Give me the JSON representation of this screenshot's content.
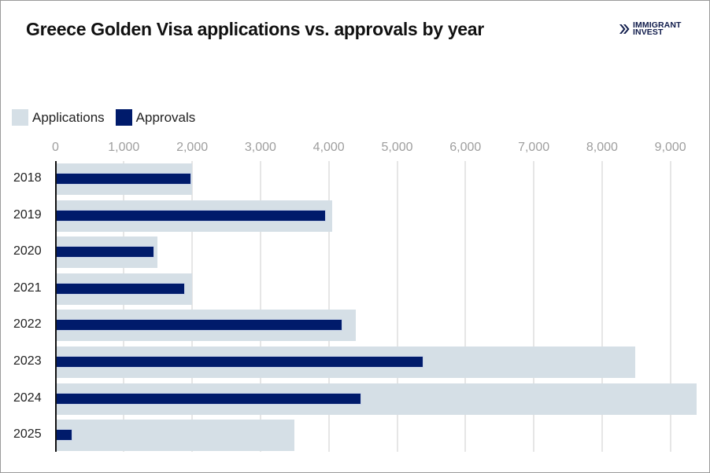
{
  "header": {
    "title": "Greece Golden Visa applications vs. approvals by year",
    "logo": {
      "icon": "double-chevron-right-icon",
      "line1": "IMMIGRANT",
      "line2": "INVEST"
    }
  },
  "legend": [
    {
      "label": "Applications",
      "color": "#d5dfe6"
    },
    {
      "label": "Approvals",
      "color": "#001b6b"
    }
  ],
  "axis": {
    "ticks": [
      "0",
      "1,000",
      "2,000",
      "3,000",
      "4,000",
      "5,000",
      "6,000",
      "7,000",
      "8,000",
      "9,000"
    ]
  },
  "chart_data": {
    "type": "bar",
    "orientation": "horizontal",
    "title": "Greece Golden Visa applications vs. approvals by year",
    "xlabel": "",
    "ylabel": "",
    "categories": [
      "2018",
      "2019",
      "2020",
      "2021",
      "2022",
      "2023",
      "2024",
      "2025"
    ],
    "series": [
      {
        "name": "Applications",
        "color": "#d5dfe6",
        "values": [
          2000,
          4050,
          1490,
          2000,
          4400,
          8480,
          9380,
          3500
        ]
      },
      {
        "name": "Approvals",
        "color": "#001b6b",
        "values": [
          1990,
          3960,
          1445,
          1895,
          4200,
          5390,
          4480,
          250
        ]
      }
    ],
    "xlim": [
      0,
      9400
    ],
    "x_ticks": [
      0,
      1000,
      2000,
      3000,
      4000,
      5000,
      6000,
      7000,
      8000,
      9000
    ],
    "grid": true,
    "legend_position": "top-left"
  }
}
